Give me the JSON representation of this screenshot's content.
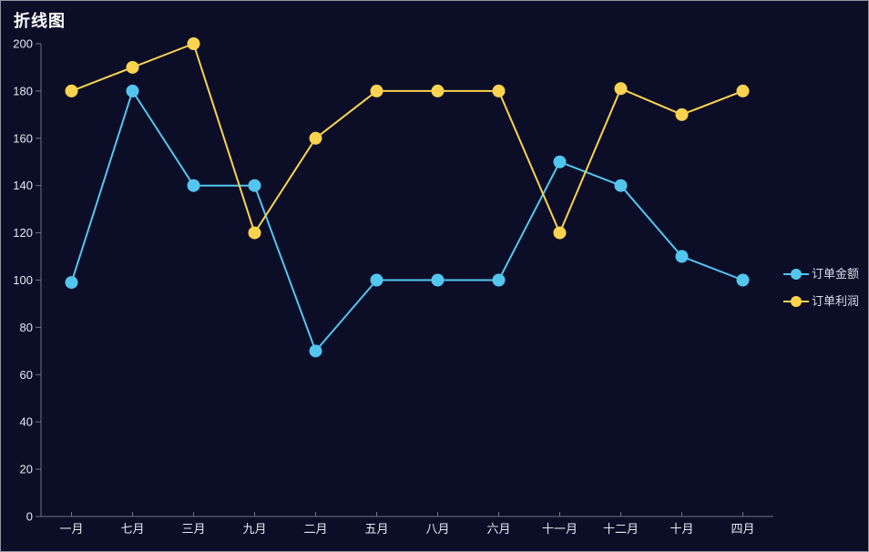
{
  "window": {
    "background": "#0c0e28",
    "border_color": "#94949e"
  },
  "chart_data": {
    "type": "line",
    "title": "折线图",
    "categories": [
      "一月",
      "七月",
      "三月",
      "九月",
      "二月",
      "五月",
      "八月",
      "六月",
      "十一月",
      "十二月",
      "十月",
      "四月"
    ],
    "series": [
      {
        "name": "订单金额",
        "color": "#53c6f0",
        "values": [
          99,
          180,
          140,
          140,
          70,
          100,
          100,
          100,
          150,
          140,
          110,
          100
        ]
      },
      {
        "name": "订单利润",
        "color": "#fbd34e",
        "values": [
          180,
          190,
          200,
          120,
          160,
          180,
          180,
          180,
          120,
          181,
          170,
          180
        ]
      }
    ],
    "ylim": [
      0,
      200
    ],
    "y_tick_interval": 20,
    "y_tick_labels": [
      "0",
      "20",
      "40",
      "60",
      "80",
      "100",
      "120",
      "140",
      "160",
      "180",
      "200"
    ],
    "legend": {
      "position": "right",
      "items": [
        "订单金额",
        "订单利润"
      ]
    },
    "grid": false,
    "axis_color": "#6f7287",
    "label_color": "#e8e8f2",
    "title_color": "#ffffff"
  }
}
